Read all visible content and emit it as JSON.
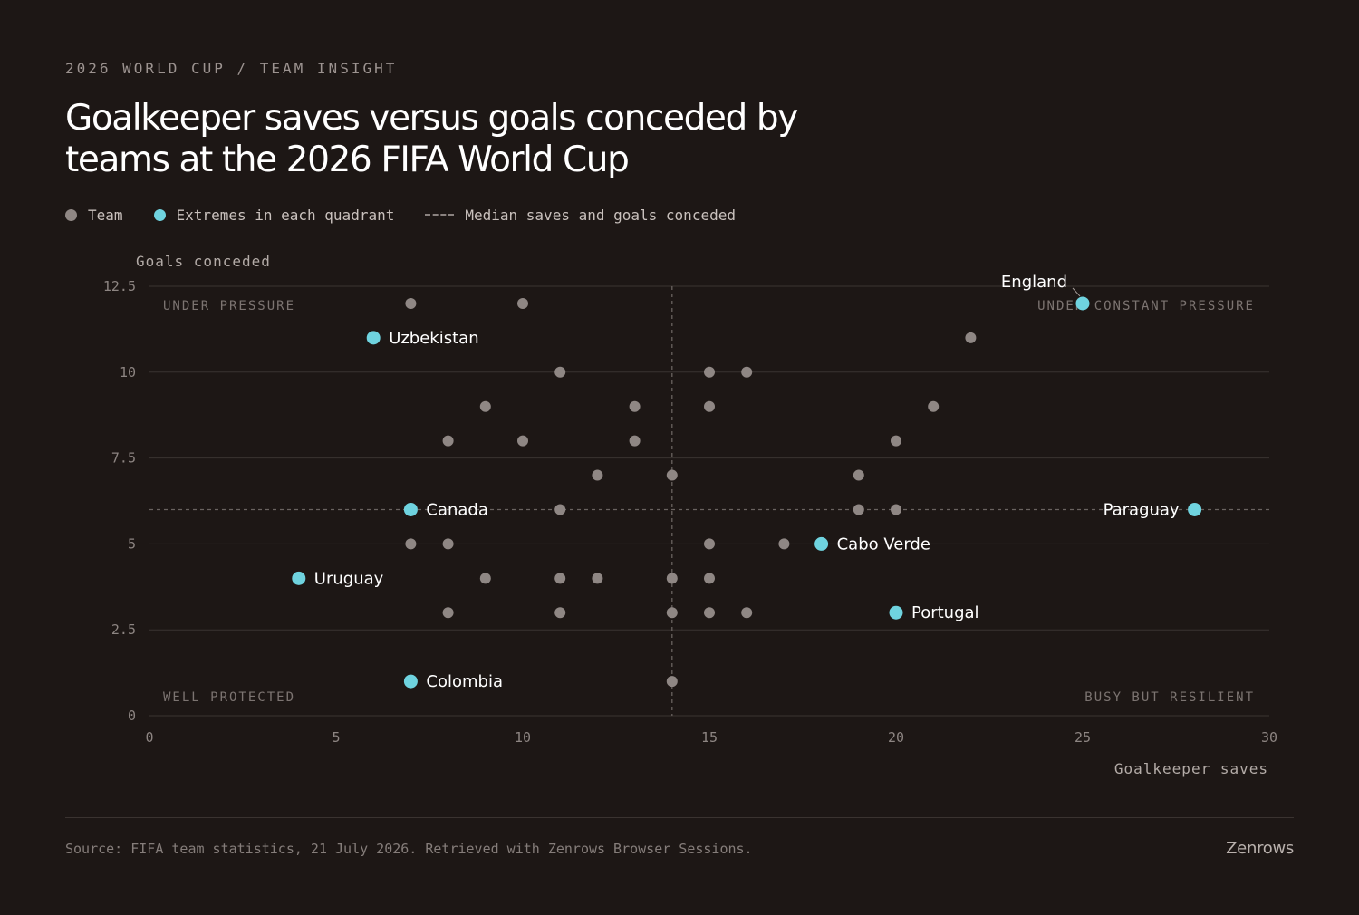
{
  "header": {
    "kicker": "2026 WORLD CUP / TEAM INSIGHT",
    "title": "Goalkeeper saves versus goals conceded by teams at the 2026 FIFA World Cup"
  },
  "legend": {
    "team": "Team",
    "extremes": "Extremes in each quadrant",
    "median": "Median saves and goals conceded"
  },
  "colors": {
    "background": "#1d1715",
    "team_dot": "#8f8784",
    "extreme_dot": "#6fd3df",
    "grid": "#3a3431",
    "median_line": "#6a6360"
  },
  "chart_data": {
    "type": "scatter",
    "xlabel": "Goalkeeper saves",
    "ylabel": "Goals conceded",
    "xlim": [
      0,
      30
    ],
    "ylim": [
      0,
      12.5
    ],
    "x_ticks": [
      "0",
      "5",
      "10",
      "15",
      "20",
      "25",
      "30"
    ],
    "y_ticks": [
      "0",
      "2.5",
      "5",
      "7.5",
      "10",
      "12.5"
    ],
    "grid": "horizontal",
    "median": {
      "x": 14,
      "y": 6
    },
    "quadrants": {
      "top_left": "UNDER PRESSURE",
      "top_right": "UNDER CONSTANT PRESSURE",
      "bottom_left": "WELL PROTECTED",
      "bottom_right": "BUSY BUT RESILIENT"
    },
    "series": [
      {
        "name": "Team",
        "points": [
          [
            7,
            12
          ],
          [
            10,
            12
          ],
          [
            22,
            11
          ],
          [
            11,
            10
          ],
          [
            15,
            10
          ],
          [
            16,
            10
          ],
          [
            9,
            9
          ],
          [
            13,
            9
          ],
          [
            15,
            9
          ],
          [
            21,
            9
          ],
          [
            8,
            8
          ],
          [
            10,
            8
          ],
          [
            13,
            8
          ],
          [
            20,
            8
          ],
          [
            12,
            7
          ],
          [
            14,
            7
          ],
          [
            19,
            7
          ],
          [
            11,
            6
          ],
          [
            19,
            6
          ],
          [
            20,
            6
          ],
          [
            7,
            5
          ],
          [
            8,
            5
          ],
          [
            15,
            5
          ],
          [
            17,
            5
          ],
          [
            9,
            4
          ],
          [
            11,
            4
          ],
          [
            12,
            4
          ],
          [
            14,
            4
          ],
          [
            15,
            4
          ],
          [
            8,
            3
          ],
          [
            11,
            3
          ],
          [
            14,
            3
          ],
          [
            15,
            3
          ],
          [
            16,
            3
          ],
          [
            14,
            1
          ]
        ]
      },
      {
        "name": "Extremes in each quadrant",
        "points": [
          {
            "team": "England",
            "x": 25,
            "y": 12
          },
          {
            "team": "Uzbekistan",
            "x": 6,
            "y": 11
          },
          {
            "team": "Canada",
            "x": 7,
            "y": 6
          },
          {
            "team": "Paraguay",
            "x": 28,
            "y": 6
          },
          {
            "team": "Cabo Verde",
            "x": 18,
            "y": 5
          },
          {
            "team": "Uruguay",
            "x": 4,
            "y": 4
          },
          {
            "team": "Portugal",
            "x": 20,
            "y": 3
          },
          {
            "team": "Colombia",
            "x": 7,
            "y": 1
          }
        ]
      }
    ]
  },
  "footer": {
    "source": "Source: FIFA team statistics, 21 July 2026. Retrieved with Zenrows Browser Sessions.",
    "brand": "Zenrows"
  }
}
